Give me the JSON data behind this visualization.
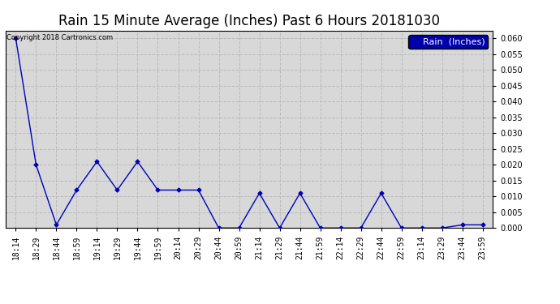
{
  "title": "Rain 15 Minute Average (Inches) Past 6 Hours 20181030",
  "copyright_text": "Copyright 2018 Cartronics.com",
  "legend_label": "Rain  (Inches)",
  "x_labels": [
    "18:14",
    "18:29",
    "18:44",
    "18:59",
    "19:14",
    "19:29",
    "19:44",
    "19:59",
    "20:14",
    "20:29",
    "20:44",
    "20:59",
    "21:14",
    "21:29",
    "21:44",
    "21:59",
    "22:14",
    "22:29",
    "22:44",
    "22:59",
    "23:14",
    "23:29",
    "23:44",
    "23:59"
  ],
  "y_values": [
    0.06,
    0.02,
    0.001,
    0.012,
    0.021,
    0.012,
    0.021,
    0.012,
    0.012,
    0.012,
    0.0,
    0.0,
    0.011,
    0.0,
    0.011,
    0.0,
    0.0,
    0.0,
    0.011,
    0.0,
    0.0,
    0.0,
    0.001,
    0.001
  ],
  "ylim": [
    0.0,
    0.0625
  ],
  "yticks": [
    0.0,
    0.005,
    0.01,
    0.015,
    0.02,
    0.025,
    0.03,
    0.035,
    0.04,
    0.045,
    0.05,
    0.055,
    0.06
  ],
  "line_color": "#0000bb",
  "marker": "D",
  "marker_size": 2.5,
  "background_color": "#ffffff",
  "plot_bg_color": "#d8d8d8",
  "grid_color": "#bbbbbb",
  "title_fontsize": 12,
  "tick_fontsize": 7,
  "legend_fontsize": 8,
  "legend_bg": "#0000aa",
  "legend_fg": "#ffffff",
  "figwidth": 6.9,
  "figheight": 3.75,
  "dpi": 100
}
